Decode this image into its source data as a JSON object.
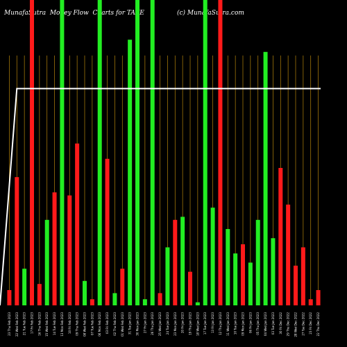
{
  "title": "MunafaSutra  Money Flow  Charts for TAXE",
  "watermark": "(c) MunafaSutra.com",
  "chart_data": {
    "type": "bar",
    "categories": [
      "23 Thu Feb 2023",
      "22 Wed Feb 2023",
      "21 Tue Feb 2023",
      "17 Fri Feb 2023",
      "16 Thu Feb 2023",
      "15 Wed Feb 2023",
      "14 Tue Feb 2023",
      "13 Mon Feb 2023",
      "10 Fri Feb 2023",
      "09 Thu Feb 2023",
      "08 Wed Feb 2023",
      "07 Tue Feb 2023",
      "06 Mon Feb 2023",
      "03 Fri Feb 2023",
      "02 Thu Feb 2023",
      "01 Wed Feb 2023",
      "31 Tue Jan 2023",
      "30 Mon Jan 2023",
      "27 Fri Jan 2023",
      "26 Thu Jan 2023",
      "25 Wed Jan 2023",
      "24 Tue Jan 2023",
      "23 Mon Jan 2023",
      "20 Fri Jan 2023",
      "19 Thu Jan 2023",
      "18 Wed Jan 2023",
      "17 Tue Jan 2023",
      "13 Fri Jan 2023",
      "12 Thu Jan 2023",
      "11 Wed Jan 2023",
      "10 Tue Jan 2023",
      "09 Mon Jan 2023",
      "06 Fri Jan 2023",
      "05 Thu Jan 2023",
      "04 Wed Jan 2023",
      "03 Tue Jan 2023",
      "30 Fri Dec 2022",
      "29 Thu Dec 2022",
      "28 Wed Dec 2022",
      "27 Tue Dec 2022",
      "23 Fri Dec 2022",
      "22 Thu Dec 2022"
    ],
    "tick_labels": [
      "23 Thu Feb 2023",
      "22 Wed Feb 2023",
      "21 Tue Feb 2023",
      "17 Fri Feb 2023",
      "16 Thu Feb 2023",
      "15 Wed Feb 2023",
      "14 Tue Feb 2023",
      "13 Mon Feb 2023",
      "10 Fri Feb 2023",
      "09 Thu Feb 2023",
      "08 Wed Feb 2023",
      "07 Tue Feb 2023",
      "06 Mon Feb 2023",
      "03 Fri Feb 2023",
      "02 Thu Feb 2023",
      "01 Wed Feb 2023",
      "31 Tue Jan 2023",
      "30 Mon Jan 2023",
      "27 Fri Jan 2023",
      "26 Thu Jan 2023",
      "25 Wed Jan 2023",
      "24 Tue Jan 2023",
      "23 Mon Jan 2023",
      "20 Fri Jan 2023",
      "19 Thu Jan 2023",
      "18 Wed Jan 2023",
      "17 Tue Jan 2023",
      "13 Fri Jan 2023",
      "12 Thu Jan 2023",
      "11 Wed Jan 2023",
      "10 Tue Jan 2023",
      "09 Mon Jan 2023",
      "06 Fri Jan 2023",
      "05 Thu Jan 2023",
      "04 Wed Jan 2023",
      "03 Tue Jan 2023",
      "30 Fri Dec 2022",
      "29 Thu Dec 2022",
      "28 Wed Dec 2022",
      "27 Tue Dec 2022",
      "23 Fri Dec 2022",
      "22 Thu Dec 2022"
    ],
    "values": [
      5,
      42,
      12,
      100,
      7,
      28,
      37,
      100,
      36,
      53,
      8,
      2,
      100,
      48,
      4,
      12,
      87,
      100,
      2,
      100,
      4,
      19,
      28,
      29,
      11,
      1,
      100,
      32,
      100,
      25,
      17,
      20,
      14,
      28,
      83,
      22,
      45,
      33,
      13,
      19,
      2,
      5
    ],
    "colors": [
      "red",
      "red",
      "green",
      "red",
      "red",
      "green",
      "red",
      "green",
      "red",
      "red",
      "green",
      "red",
      "green",
      "red",
      "green",
      "red",
      "green",
      "green",
      "green",
      "green",
      "red",
      "green",
      "red",
      "green",
      "red",
      "green",
      "green",
      "green",
      "red",
      "green",
      "green",
      "red",
      "green",
      "green",
      "green",
      "green",
      "red",
      "red",
      "red",
      "red",
      "red",
      "red"
    ],
    "series_line": [
      0,
      71,
      71,
      71,
      71,
      71,
      71,
      71,
      71,
      71,
      71,
      71,
      71,
      71,
      71,
      71,
      71,
      71,
      71,
      71,
      71,
      71,
      71,
      71,
      71,
      71,
      71,
      71,
      71,
      71,
      71,
      71,
      71,
      71,
      71,
      71,
      71,
      71,
      71,
      71,
      71,
      71
    ],
    "ylim": [
      0,
      100
    ],
    "grid": "vertical",
    "colors_hex": {
      "red": "#ff1a1a",
      "green": "#22ee22",
      "grid": "#b8860b",
      "line": "#ffffff"
    }
  }
}
